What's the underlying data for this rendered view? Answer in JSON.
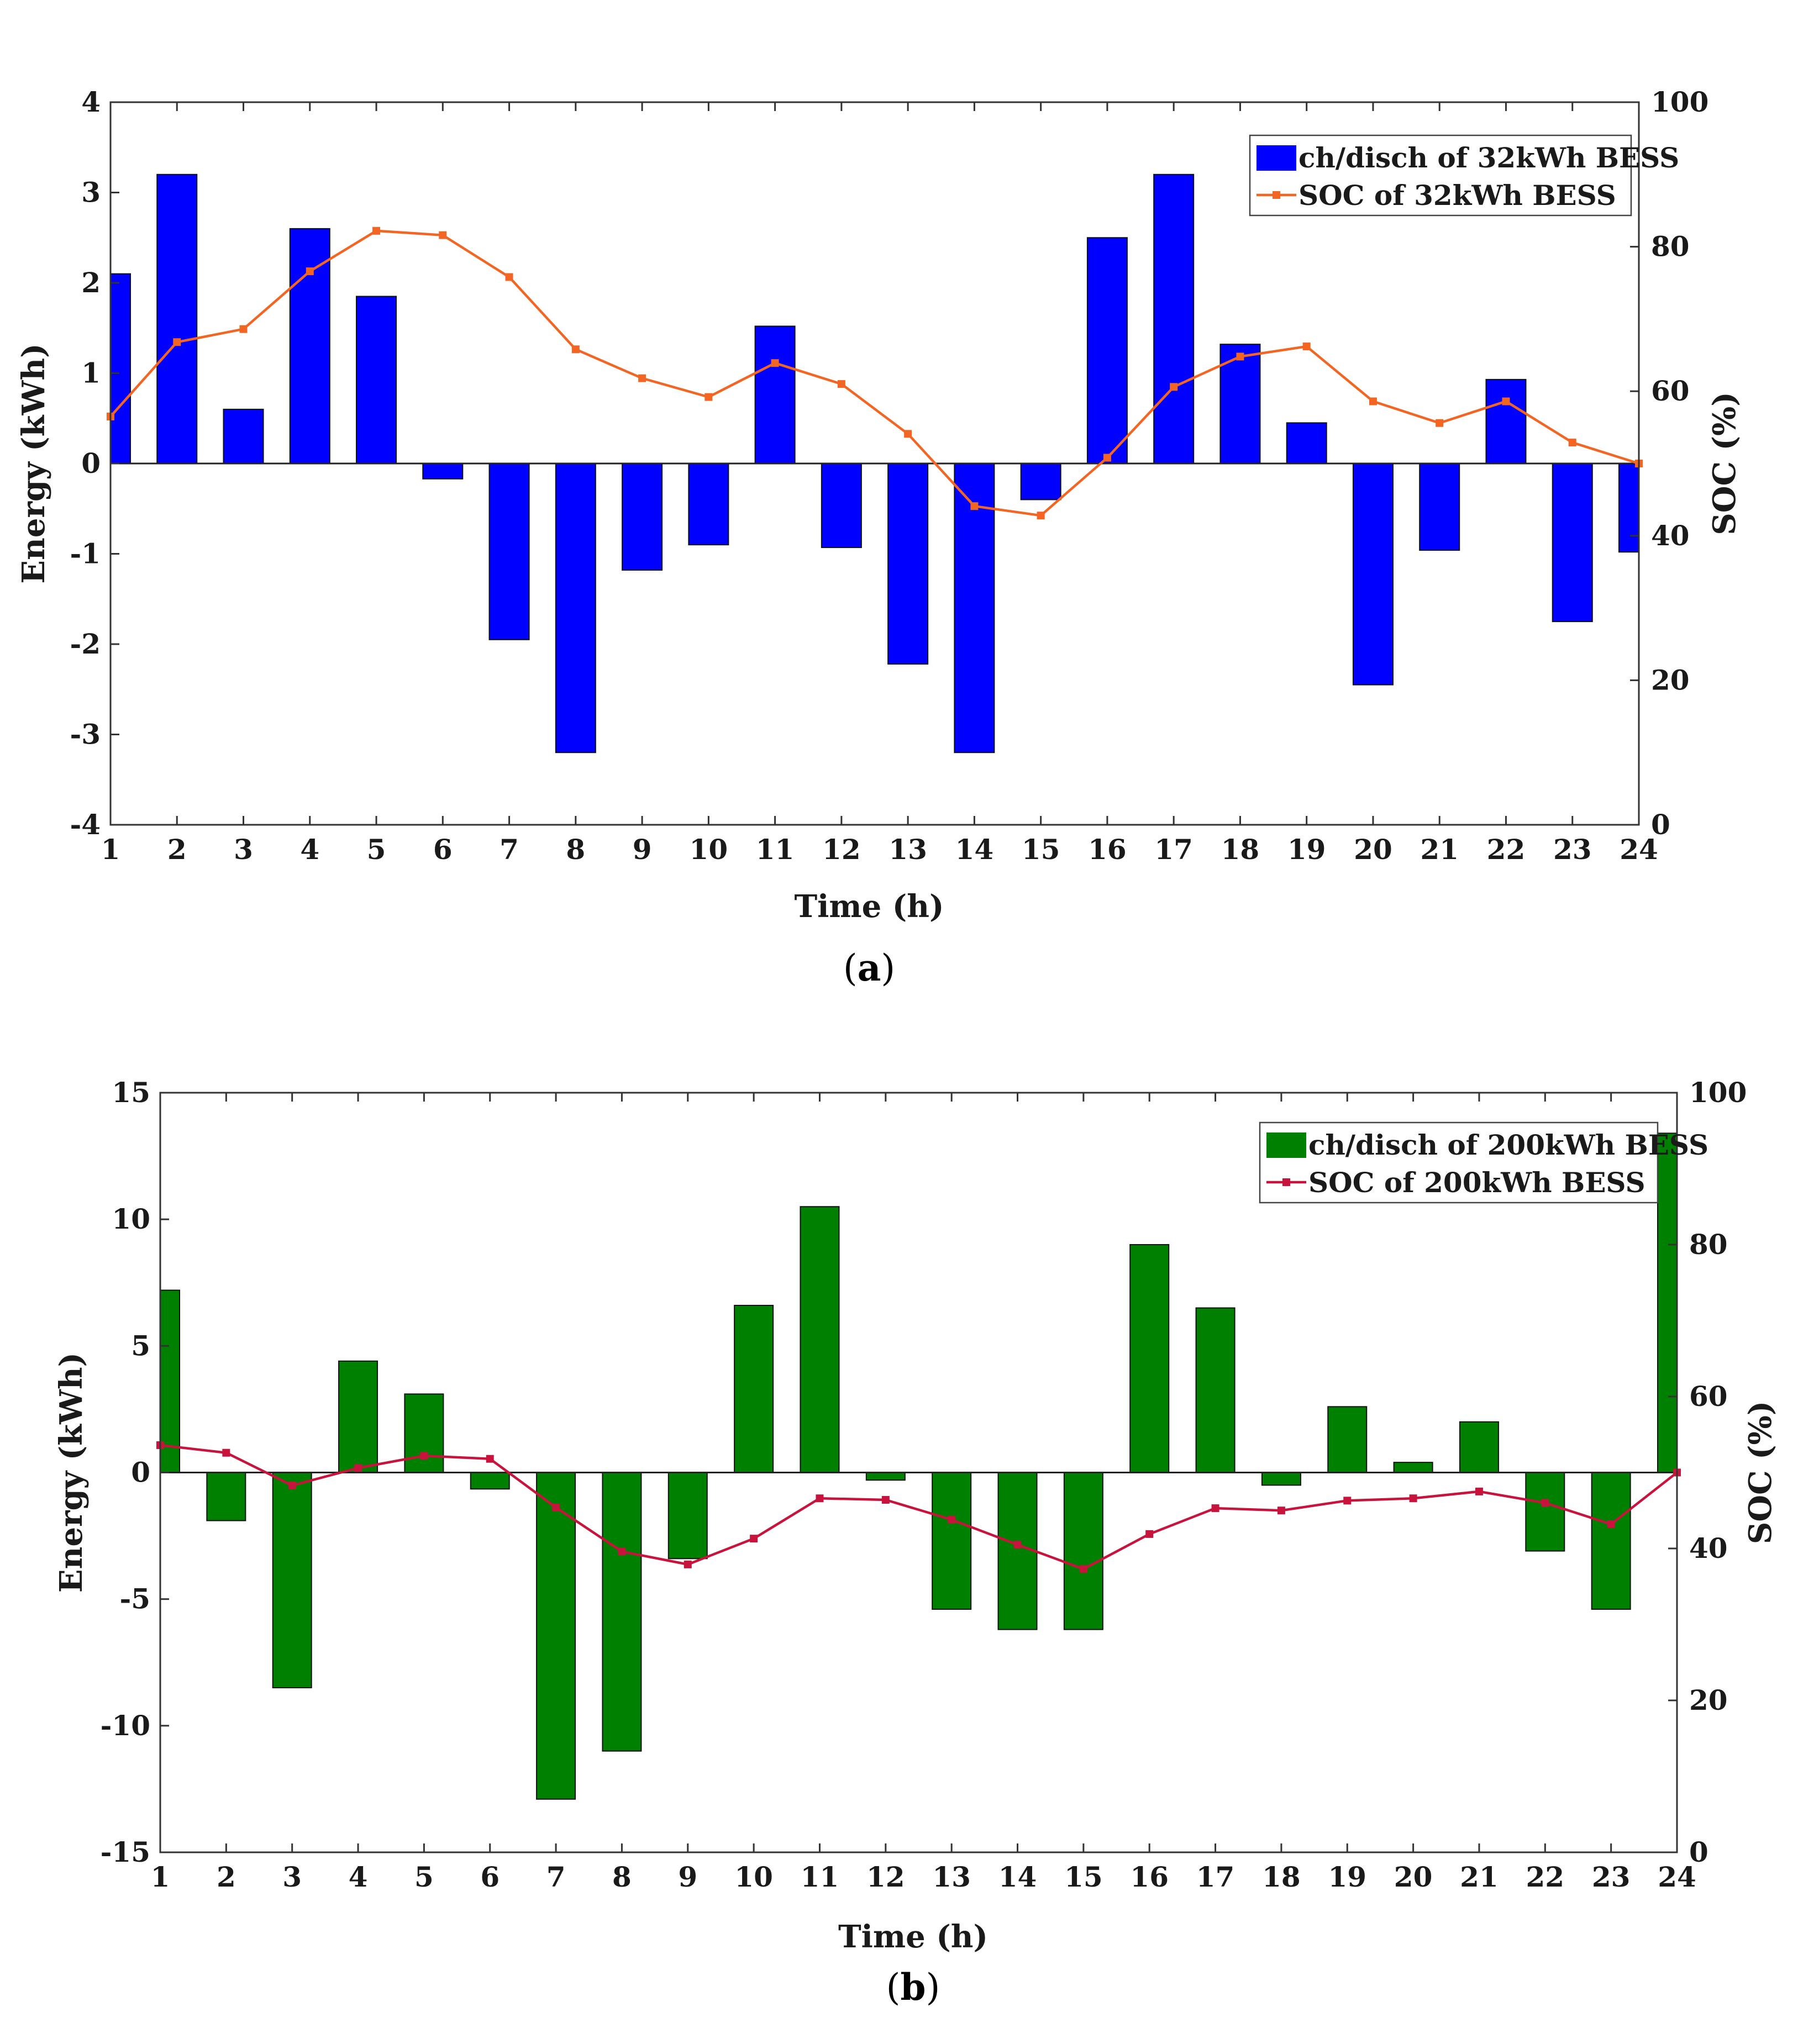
{
  "chart_data": [
    {
      "type": "bar",
      "caption": "a",
      "x": [
        1,
        2,
        3,
        4,
        5,
        6,
        7,
        8,
        9,
        10,
        11,
        12,
        13,
        14,
        15,
        16,
        17,
        18,
        19,
        20,
        21,
        22,
        23,
        24
      ],
      "xlabel": "Time (h)",
      "ylabel": "Energy (kWh)",
      "y2label": "SOC (%)",
      "xlim": [
        1,
        24
      ],
      "ylim": [
        -4,
        4
      ],
      "y2lim": [
        0,
        100
      ],
      "yticks": [
        -4,
        -3,
        -2,
        -1,
        0,
        1,
        2,
        3,
        4
      ],
      "y2ticks": [
        0,
        20,
        40,
        60,
        80,
        100
      ],
      "legend_position": "top-right",
      "grid": false,
      "series": [
        {
          "name": "ch/disch of 32kWh BESS",
          "kind": "bar",
          "axis": "left",
          "color": "#0000ff",
          "values": [
            2.1,
            3.2,
            0.6,
            2.6,
            1.85,
            -0.17,
            -1.95,
            -3.2,
            -1.18,
            -0.9,
            1.52,
            -0.93,
            -2.22,
            -3.2,
            -0.4,
            2.5,
            3.2,
            1.32,
            0.45,
            -2.45,
            -0.96,
            0.93,
            -1.75,
            -0.98
          ]
        },
        {
          "name": "SOC of 32kWh BESS",
          "kind": "line",
          "axis": "right",
          "color": "#f26522",
          "values": [
            56.5,
            66.8,
            68.6,
            76.6,
            82.2,
            81.6,
            75.8,
            65.8,
            61.8,
            59.2,
            63.9,
            61.0,
            54.1,
            44.1,
            42.8,
            50.8,
            60.6,
            64.8,
            66.2,
            58.6,
            55.6,
            58.6,
            52.9,
            50.0
          ]
        }
      ]
    },
    {
      "type": "bar",
      "caption": "b",
      "x": [
        1,
        2,
        3,
        4,
        5,
        6,
        7,
        8,
        9,
        10,
        11,
        12,
        13,
        14,
        15,
        16,
        17,
        18,
        19,
        20,
        21,
        22,
        23,
        24
      ],
      "xlabel": "Time (h)",
      "ylabel": "Energy (kWh)",
      "y2label": "SOC (%)",
      "xlim": [
        1,
        24
      ],
      "ylim": [
        -15,
        15
      ],
      "y2lim": [
        0,
        100
      ],
      "yticks": [
        -15,
        -10,
        -5,
        0,
        5,
        10,
        15
      ],
      "y2ticks": [
        0,
        20,
        40,
        60,
        80,
        100
      ],
      "legend_position": "top-right",
      "grid": false,
      "series": [
        {
          "name": "ch/disch of 200kWh BESS",
          "kind": "bar",
          "axis": "left",
          "color": "#008000",
          "values": [
            7.2,
            -1.9,
            -8.5,
            4.4,
            3.1,
            -0.65,
            -12.9,
            -11.0,
            -3.4,
            6.6,
            10.5,
            -0.3,
            -5.4,
            -6.2,
            -6.2,
            9.0,
            6.5,
            -0.5,
            2.6,
            0.4,
            2.0,
            -3.1,
            -5.4,
            13.4
          ]
        },
        {
          "name": "SOC of 200kWh BESS",
          "kind": "line",
          "axis": "right",
          "color": "#c8143c",
          "values": [
            53.6,
            52.6,
            48.3,
            50.6,
            52.2,
            51.8,
            45.4,
            39.6,
            37.9,
            41.3,
            46.6,
            46.4,
            43.8,
            40.5,
            37.3,
            41.9,
            45.3,
            45.0,
            46.3,
            46.6,
            47.5,
            46.0,
            43.2,
            50.0
          ]
        }
      ]
    }
  ]
}
